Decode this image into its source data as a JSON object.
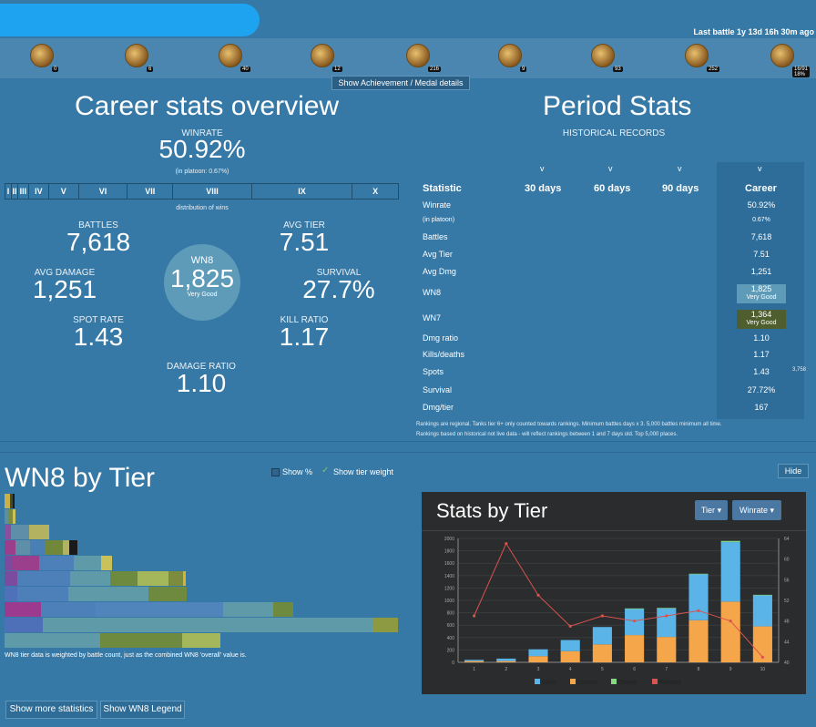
{
  "header": {
    "last_battle": "Last battle 1y 13d 16h 30m ago"
  },
  "medals": {
    "counts": [
      "0",
      "6",
      "40",
      "12",
      "216",
      "9",
      "93",
      "252",
      "16/91\n18%"
    ],
    "details_button": "Show Achievement / Medal details"
  },
  "career": {
    "title": "Career stats overview",
    "winrate_label": "WINRATE",
    "winrate_value": "50.92%",
    "platoon_note": "(in platoon: 0.67%)",
    "tiers": [
      "I",
      "II",
      "III",
      "IV",
      "V",
      "VI",
      "VII",
      "VIII",
      "IX",
      "X"
    ],
    "distribution_label": "distribution of wins",
    "battles_label": "BATTLES",
    "battles_value": "7,618",
    "avg_tier_label": "AVG TIER",
    "avg_tier_value": "7.51",
    "avg_damage_label": "AVG DAMAGE",
    "avg_damage_value": "1,251",
    "survival_label": "SURVIVAL",
    "survival_value": "27.7%",
    "wn8_label": "WN8",
    "wn8_value": "1,825",
    "wn8_rating": "Very Good",
    "spot_rate_label": "SPOT RATE",
    "spot_rate_value": "1.43",
    "kill_ratio_label": "KILL RATIO",
    "kill_ratio_value": "1.17",
    "damage_ratio_label": "DAMAGE RATIO",
    "damage_ratio_value": "1.10"
  },
  "period": {
    "title": "Period Stats",
    "subtitle": "HISTORICAL RECORDS",
    "arrow": "v",
    "headers": [
      "Statistic",
      "30 days",
      "60 days",
      "90 days",
      "Career"
    ],
    "rows": [
      {
        "label": "Winrate",
        "career": "50.92%"
      },
      {
        "label": "(in platoon)",
        "career": "0.67%"
      },
      {
        "label": "Battles",
        "career": "7,618"
      },
      {
        "label": "Avg Tier",
        "career": "7.51"
      },
      {
        "label": "Avg Dmg",
        "career": "1,251"
      },
      {
        "label": "WN8",
        "career": "1,825",
        "rating": "Very Good"
      },
      {
        "label": "WN7",
        "career": "1,364",
        "rating": "Very Good"
      },
      {
        "label": "Dmg ratio",
        "career": "1.10"
      },
      {
        "label": "Kills/deaths",
        "career": "1.17"
      },
      {
        "label": "Spots",
        "career": "1.43"
      },
      {
        "label": "Survival",
        "career": "27.72%"
      },
      {
        "label": "Dmg/tier",
        "career": "167"
      }
    ],
    "side_number": "3,758",
    "note_line1": "Rankings are regional. Tanks tier 6+ only counted towards rankings. Minimum battles days x 3. 5,000 battles minimum all time.",
    "note_line2": "Rankings based on historical not live data - will reflect rankings between 1 and 7 days old. Top 5,000 places."
  },
  "wn8_tier": {
    "title": "WN8 by Tier",
    "show_percent": "Show %",
    "show_weight": "Show tier weight",
    "hide": "Hide",
    "note": "WN8 tier data is weighted by battle count, just as the combined WN8 'overall' value is."
  },
  "footer": {
    "more_stats": "Show more statistics",
    "wn8_legend": "Show WN8 Legend"
  },
  "stats_by_tier": {
    "title": "Stats by Tier",
    "tier_button": "Tier",
    "winrate_button": "Winrate"
  },
  "chart_data": {
    "type": "bar",
    "categories": [
      "1",
      "2",
      "3",
      "4",
      "5",
      "6",
      "7",
      "8",
      "9",
      "10"
    ],
    "series": [
      {
        "name": "Wins",
        "values": [
          20,
          40,
          110,
          180,
          280,
          420,
          460,
          740,
          960,
          500
        ]
      },
      {
        "name": "Losses",
        "values": [
          20,
          20,
          100,
          180,
          290,
          440,
          410,
          680,
          980,
          580
        ]
      },
      {
        "name": "Draws",
        "values": [
          0,
          0,
          0,
          0,
          0,
          10,
          10,
          10,
          20,
          10
        ]
      },
      {
        "name": "Winrate",
        "values": [
          49,
          63,
          53,
          47,
          49,
          48,
          49,
          50,
          48,
          41
        ]
      }
    ],
    "left_axis_ticks": [
      0,
      200,
      400,
      600,
      800,
      1000,
      1200,
      1400,
      1600,
      1800,
      2000
    ],
    "right_axis_ticks": [
      40,
      44,
      48,
      52,
      56,
      60,
      64
    ],
    "legend": [
      "Wins",
      "Losses",
      "Draws",
      "Winrate"
    ],
    "colors": {
      "wins": "#5ab4e8",
      "losses": "#f5a54a",
      "draws": "#86d686",
      "winrate": "#d9534f"
    }
  },
  "colors": {
    "background": "#3679a6",
    "wn8_good": "#5d9bb8",
    "wn7_good": "#4f5e2e"
  }
}
